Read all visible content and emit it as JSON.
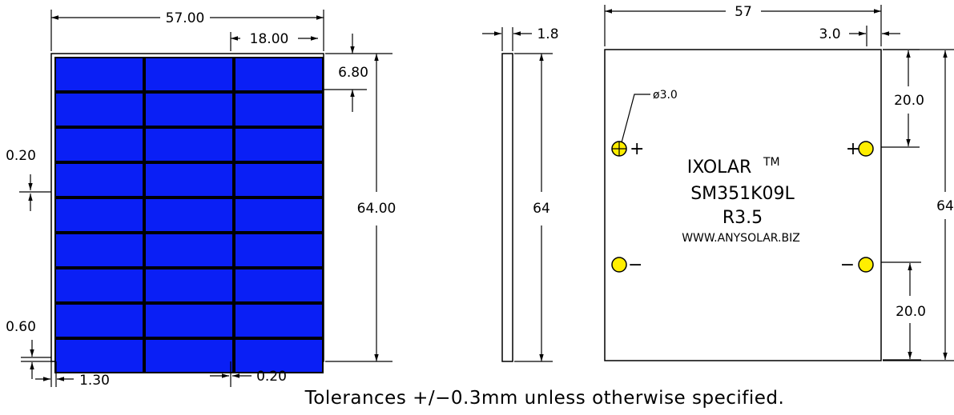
{
  "front_view": {
    "width_label": "57.00",
    "cell_width_label": "18.00",
    "top_margin_label": "6.80",
    "height_label": "64.00",
    "gap_label": "0.20",
    "bottom_margin_label": "0.60",
    "left_margin_label": "1.30",
    "column_gap_label": "0.20",
    "cell_color": "#0a1ff5"
  },
  "side_view": {
    "thickness_label": "1.8",
    "height_label": "64"
  },
  "back_view": {
    "width_label": "57",
    "edge_offset_label": "3.0",
    "hole_label": "ø3.0",
    "top_spacing_label": "20.0",
    "bottom_spacing_label": "20.0",
    "height_label": "64",
    "brand": "IXOLAR",
    "trademark": "TM",
    "model": "SM351K09L",
    "revision": "R3.5",
    "website": "WWW.ANYSOLAR.BIZ",
    "plus_sign": "+",
    "minus_sign": "−",
    "terminal_color": "#ffee00"
  },
  "footer": {
    "tolerance_note": "Tolerances +/−0.3mm unless otherwise specified."
  }
}
